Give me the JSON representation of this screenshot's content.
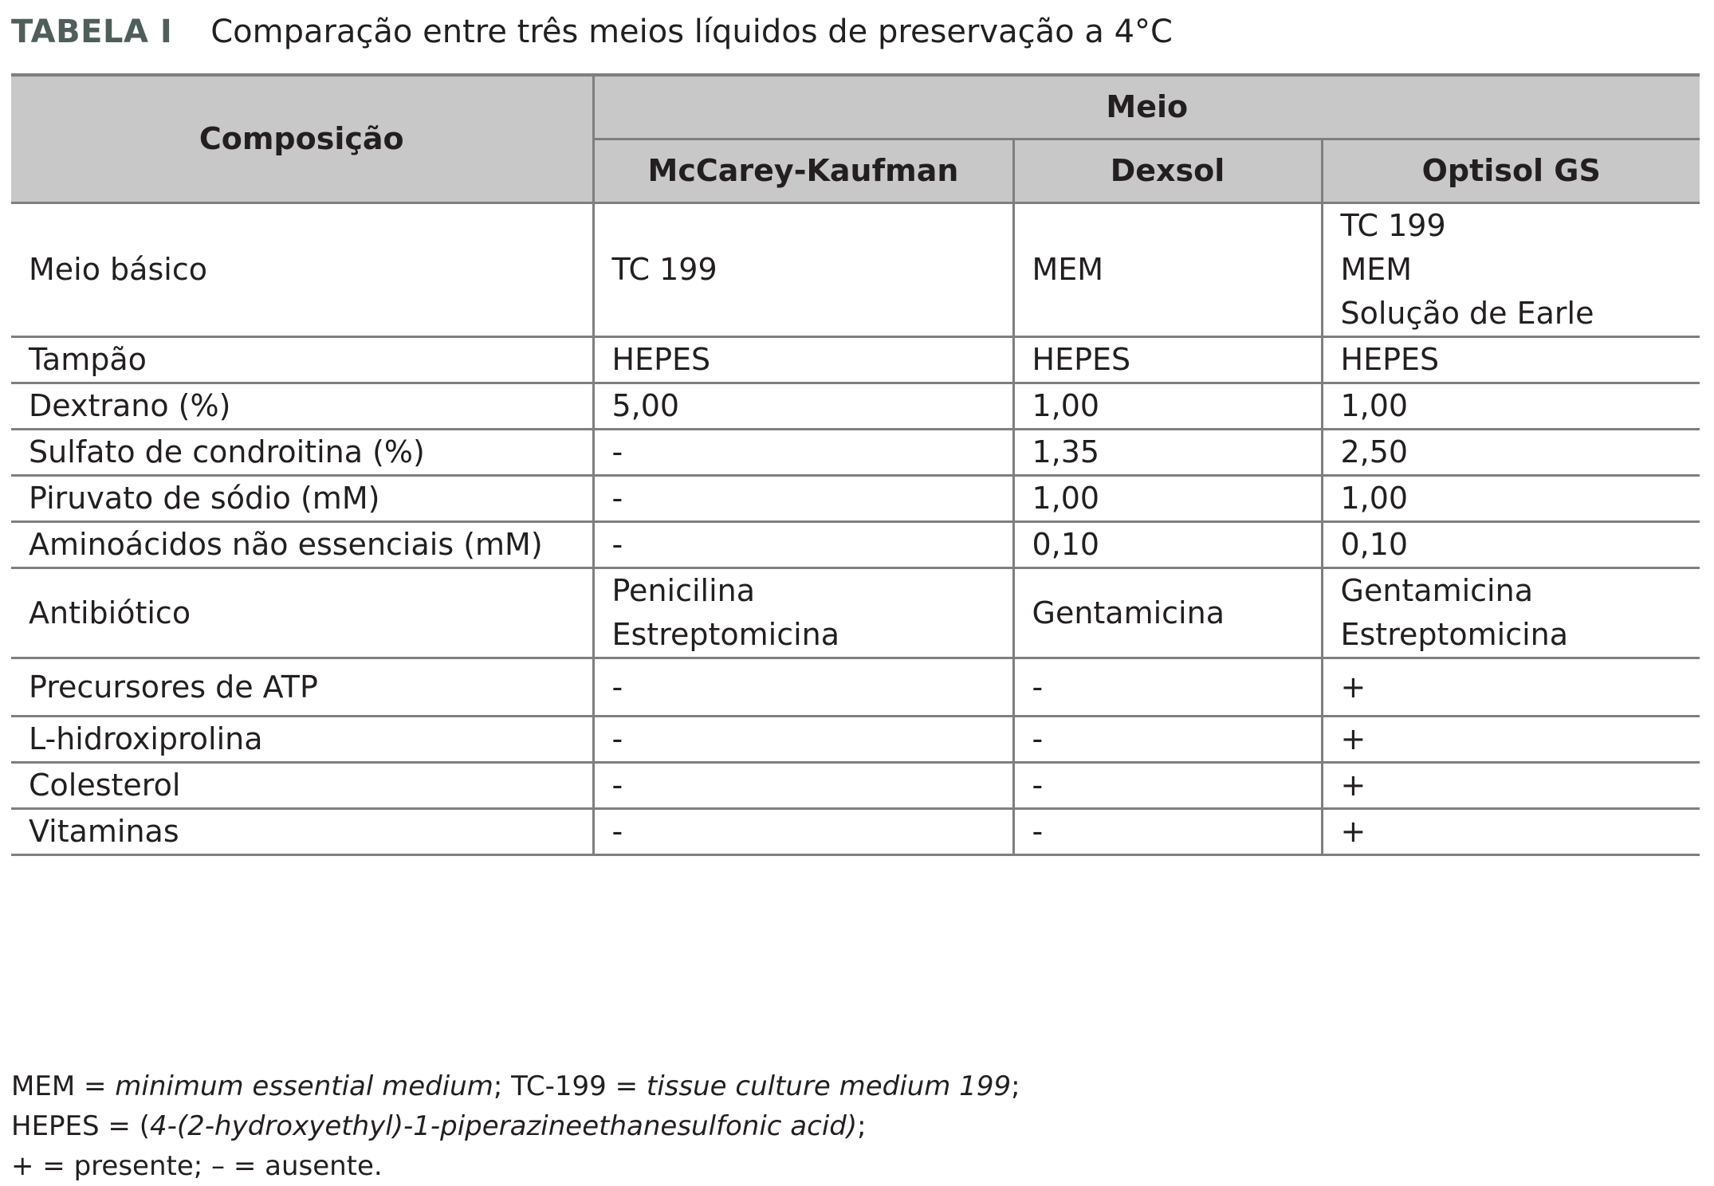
{
  "caption": {
    "label": "TABELA I",
    "title": "Comparação entre três meios líquidos de preservação a 4°C"
  },
  "table": {
    "row_header_label": "Composição",
    "group_header": "Meio",
    "columns": [
      "McCarey-Kaufman",
      "Dexsol",
      "Optisol GS"
    ],
    "rows": [
      {
        "label": "Meio básico",
        "values": [
          "TC 199",
          "MEM",
          "TC 199\nMEM\nSolução de Earle"
        ]
      },
      {
        "label": "Tampão",
        "values": [
          "HEPES",
          "HEPES",
          "HEPES"
        ]
      },
      {
        "label": "Dextrano (%)",
        "values": [
          "5,00",
          "1,00",
          "1,00"
        ]
      },
      {
        "label": "Sulfato de condroitina (%)",
        "values": [
          "-",
          "1,35",
          "2,50"
        ]
      },
      {
        "label": "Piruvato de sódio (mM)",
        "values": [
          "-",
          "1,00",
          "1,00"
        ]
      },
      {
        "label": "Aminoácidos não essenciais (mM)",
        "values": [
          "-",
          "0,10",
          "0,10"
        ]
      },
      {
        "label": "Antibiótico",
        "values": [
          "Penicilina\nEstreptomicina",
          "Gentamicina",
          "Gentamicina\nEstreptomicina"
        ]
      },
      {
        "label": "Precursores de ATP",
        "values": [
          "-",
          "-",
          "+"
        ]
      },
      {
        "label": "L-hidroxiprolina",
        "values": [
          "-",
          "-",
          "+"
        ]
      },
      {
        "label": "Colesterol",
        "values": [
          "-",
          "-",
          "+"
        ]
      },
      {
        "label": "Vitaminas",
        "values": [
          "-",
          "-",
          "+"
        ]
      }
    ]
  },
  "legend": {
    "line1_a": "MEM = ",
    "line1_b": "minimum essential medium",
    "line1_c": "; TC-199 = ",
    "line1_d": "tissue culture medium 199",
    "line1_e": ";",
    "line2_a": "HEPES = (",
    "line2_b": "4-(2-hydroxyethyl)-1-piperazineethanesulfonic acid)",
    "line2_c": ";",
    "line3": "+ = presente; – = ausente."
  }
}
